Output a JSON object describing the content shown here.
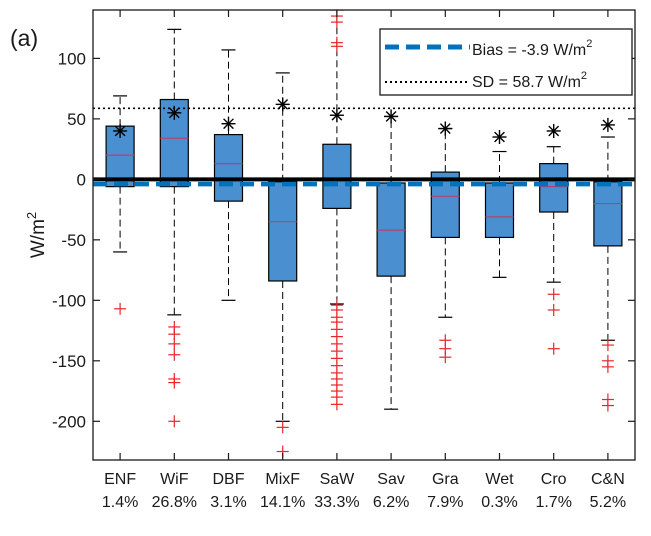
{
  "panel_label": "(a)",
  "chart_data": {
    "type": "box",
    "ylabel": "W/m",
    "ylabel_superscript": "2",
    "ylim": [
      -232,
      140
    ],
    "yticks": [
      100,
      50,
      0,
      -50,
      -100,
      -150,
      -200
    ],
    "ytick_labels": [
      "100",
      "50",
      "0",
      "-50",
      "-100",
      "-150",
      "-200"
    ],
    "categories": [
      "ENF",
      "WiF",
      "DBF",
      "MixF",
      "SaW",
      "Sav",
      "Gra",
      "Wet",
      "Cro",
      "C&N"
    ],
    "percentages": [
      "1.4%",
      "26.8%",
      "3.1%",
      "14.1%",
      "33.3%",
      "6.2%",
      "7.9%",
      "0.3%",
      "1.7%",
      "5.2%"
    ],
    "boxes": [
      {
        "q1": -6,
        "median": 20,
        "q3": 44,
        "whisker_low": -60,
        "whisker_high": 69,
        "mean_abs": 40,
        "outliers": [
          -107
        ]
      },
      {
        "q1": -6,
        "median": 34,
        "q3": 66,
        "whisker_low": -112,
        "whisker_high": 124,
        "mean_abs": 55,
        "outliers": [
          -122,
          -128,
          -136,
          -145,
          -165,
          -168,
          -200
        ]
      },
      {
        "q1": -18,
        "median": 13,
        "q3": 37,
        "whisker_low": -100,
        "whisker_high": 107,
        "mean_abs": 46,
        "outliers": []
      },
      {
        "q1": -84,
        "median": -35,
        "q3": -2,
        "whisker_low": -200,
        "whisker_high": 88,
        "mean_abs": 62,
        "outliers": [
          -205,
          -225
        ]
      },
      {
        "q1": -24,
        "median": 0,
        "q3": 29,
        "whisker_low": -103,
        "whisker_high": 140,
        "mean_abs": 53,
        "outliers": [
          135,
          130,
          113,
          110,
          -104,
          -108,
          -114,
          -118,
          -124,
          -130,
          -136,
          -142,
          -148,
          -154,
          -160,
          -165,
          -170,
          -175,
          -180,
          -186
        ]
      },
      {
        "q1": -80,
        "median": -42,
        "q3": -3,
        "whisker_low": -190,
        "whisker_high": 52,
        "mean_abs": 52,
        "outliers": []
      },
      {
        "q1": -48,
        "median": -14,
        "q3": 6,
        "whisker_low": -114,
        "whisker_high": 42,
        "mean_abs": 42,
        "outliers": [
          -133,
          -140,
          -147
        ]
      },
      {
        "q1": -48,
        "median": -31,
        "q3": -3,
        "whisker_low": -81,
        "whisker_high": 23,
        "mean_abs": 35,
        "outliers": []
      },
      {
        "q1": -27,
        "median": -6,
        "q3": 13,
        "whisker_low": -85,
        "whisker_high": 27,
        "mean_abs": 40,
        "outliers": [
          -95,
          -108,
          -140
        ]
      },
      {
        "q1": -55,
        "median": -20,
        "q3": -2,
        "whisker_low": -133,
        "whisker_high": 35,
        "mean_abs": 45,
        "outliers": [
          -137,
          -150,
          -155,
          -182,
          -187
        ]
      }
    ],
    "reference_lines": {
      "zero": 0,
      "bias": -3.9,
      "sd": 58.7
    },
    "legend": {
      "position": "top-right",
      "entries": [
        {
          "label": "Bias = -3.9 W/m",
          "superscript": "2",
          "style": "dashed",
          "color": "#0072bd"
        },
        {
          "label": "SD  = 58.7 W/m",
          "superscript": "2",
          "style": "dotted",
          "color": "#000000"
        }
      ]
    },
    "colors": {
      "box_fill": "#4a90d0",
      "box_edge": "#000000",
      "median": "#b0446f",
      "outlier": "#e8262a",
      "bias_line": "#0072bd",
      "zero_line": "#000000",
      "mean_marker": "#000000"
    },
    "mean_marker_symbol": "asterisk",
    "outlier_symbol": "plus",
    "grid": false
  }
}
